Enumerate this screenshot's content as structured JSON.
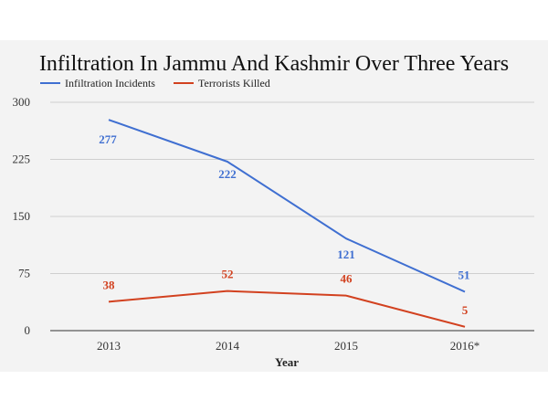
{
  "chart_data": {
    "type": "line",
    "title": "Infiltration In Jammu And Kashmir Over Three Years",
    "xlabel": "Year",
    "ylabel": "",
    "categories": [
      "2013",
      "2014",
      "2015",
      "2016*"
    ],
    "y_ticks": [
      "0",
      "75",
      "150",
      "225",
      "300"
    ],
    "ylim": [
      0,
      300
    ],
    "grid": true,
    "legend_position": "top-left",
    "series": [
      {
        "name": "Infiltration Incidents",
        "color": "#3f6fd1",
        "values": [
          277,
          222,
          121,
          51
        ],
        "labels": [
          "277",
          "222",
          "121",
          "51"
        ]
      },
      {
        "name": "Terrorists Killed",
        "color": "#d2411f",
        "values": [
          38,
          52,
          46,
          5
        ],
        "labels": [
          "38",
          "52",
          "46",
          "5"
        ]
      }
    ]
  }
}
